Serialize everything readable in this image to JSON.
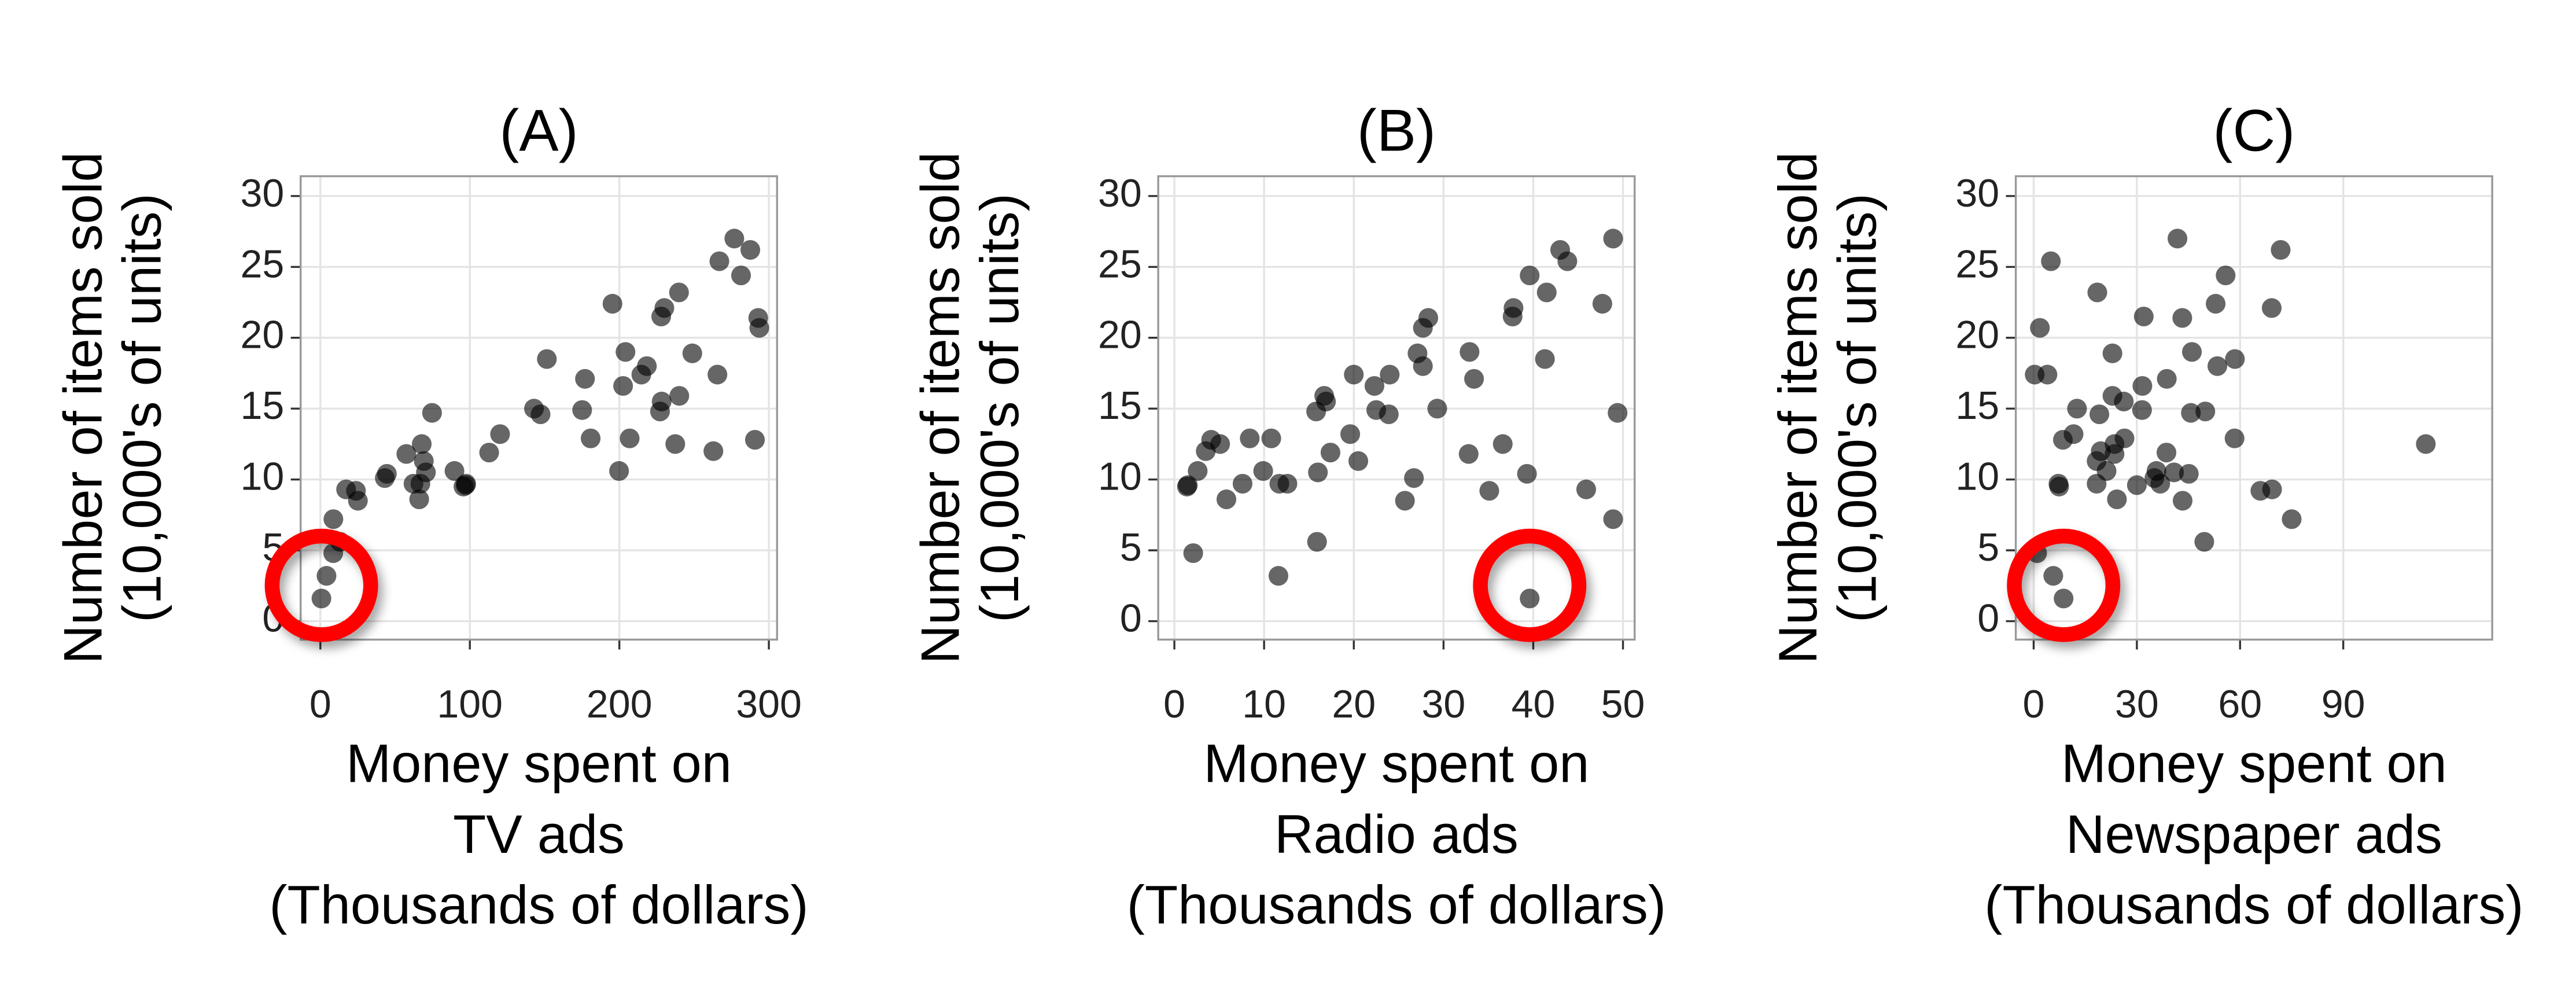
{
  "chart_data": [
    {
      "type": "scatter",
      "title": "(A)",
      "y_label": [
        "Number of items sold",
        "(10,000's of units)"
      ],
      "x_label": [
        "Money spent on",
        "TV ads",
        "(Thousands of dollars)"
      ],
      "x": [
        0.7,
        230.1,
        44.5,
        17.2,
        151.5,
        180.8,
        8.7,
        57.5,
        120.2,
        8.6,
        199.8,
        66.1,
        214.7,
        23.8,
        97.5,
        204.1,
        195.4,
        67.8,
        281.4,
        69.2,
        147.3,
        218.4,
        237.4,
        13.2,
        228.3,
        62.3,
        262.9,
        142.9,
        240.1,
        248.8,
        70.6,
        292.9,
        112.9,
        97.2,
        265.6,
        95.7,
        290.7,
        266.9,
        74.7,
        43.1,
        228,
        202.5,
        177,
        293.6,
        206.9,
        25.1,
        175.1,
        89.7,
        239.9,
        227.2,
        66.9,
        4.1,
        276.9,
        287.6
      ],
      "values": [
        1.6,
        22.1,
        10.4,
        9.3,
        18.5,
        12.9,
        7.2,
        11.8,
        13.2,
        4.8,
        10.6,
        8.6,
        17.4,
        9.2,
        9.7,
        19,
        22.4,
        12.5,
        24.4,
        11.3,
        14.6,
        18,
        12.5,
        5.6,
        15.5,
        9.7,
        12,
        15,
        15.9,
        18.9,
        10.5,
        21.4,
        11.9,
        9.6,
        17.4,
        9.5,
        12.8,
        25.4,
        14.7,
        10.1,
        21.5,
        16.6,
        17.1,
        20.7,
        12.9,
        8.5,
        14.9,
        10.6,
        23.2,
        14.8,
        9.7,
        3.2,
        27,
        26.2
      ],
      "color": "#000000",
      "xlim": [
        -13.2,
        305.5
      ],
      "xticks": [
        0,
        100,
        200,
        300
      ],
      "ylim": [
        -1.3,
        31.4
      ],
      "yticks": [
        0,
        5,
        10,
        15,
        20,
        25,
        30
      ],
      "grid": true,
      "highlight": 0,
      "highlight_color": "#ff0000"
    },
    {
      "type": "scatter",
      "title": "(B)",
      "y_label": [
        "Number of items sold",
        "(10,000's of units)"
      ],
      "x_label": [
        "Money spent on",
        "Radio ads",
        "(Thousands of dollars)"
      ],
      "x": [
        39.6,
        37.8,
        39.3,
        45.9,
        41.3,
        10.8,
        48.9,
        32.8,
        19.6,
        2.1,
        2.6,
        5.8,
        24,
        35.1,
        7.6,
        32.9,
        47.7,
        36.6,
        39.6,
        20.5,
        23.9,
        27.7,
        5.1,
        15.9,
        16.9,
        12.6,
        3.5,
        29.3,
        16.7,
        27.1,
        16,
        28.3,
        17.4,
        1.5,
        20,
        1.4,
        4.1,
        43.8,
        49.4,
        26.7,
        37.7,
        22.3,
        33.4,
        27.7,
        8.4,
        25.7,
        22.5,
        9.9,
        41.5,
        15.8,
        11.7,
        11.6,
        48.9,
        43
      ],
      "values": [
        1.6,
        22.1,
        10.4,
        9.3,
        18.5,
        12.9,
        7.2,
        11.8,
        13.2,
        4.8,
        10.6,
        8.6,
        17.4,
        9.2,
        9.7,
        19,
        22.4,
        12.5,
        24.4,
        11.3,
        14.6,
        18,
        12.5,
        5.6,
        15.5,
        9.7,
        12,
        15,
        15.9,
        18.9,
        10.5,
        21.4,
        11.9,
        9.6,
        17.4,
        9.5,
        12.8,
        25.4,
        14.7,
        10.1,
        21.5,
        16.6,
        17.1,
        20.7,
        12.9,
        8.5,
        14.9,
        10.6,
        23.2,
        14.8,
        9.7,
        3.2,
        27,
        26.2
      ],
      "color": "#000000",
      "xlim": [
        -1.8,
        51.3
      ],
      "xticks": [
        0,
        10,
        20,
        30,
        40,
        50
      ],
      "ylim": [
        -1.3,
        31.4
      ],
      "yticks": [
        0,
        5,
        10,
        15,
        20,
        25,
        30
      ],
      "grid": true,
      "highlight": 0,
      "highlight_color": "#ff0000"
    },
    {
      "type": "scatter",
      "title": "(C)",
      "y_label": [
        "Number of items sold",
        "(10,000's of units)"
      ],
      "x_label": [
        "Money spent on",
        "Newspaper ads",
        "(Thousands of dollars)"
      ],
      "x": [
        8.7,
        69.2,
        45.1,
        69.3,
        58.5,
        58.4,
        75,
        23.5,
        11.6,
        1,
        21.2,
        24.2,
        4,
        65.9,
        7.2,
        46,
        52.9,
        114,
        55.8,
        18.3,
        19.1,
        53.4,
        23.5,
        49.6,
        26.2,
        18.3,
        19.5,
        12.6,
        22.9,
        22.9,
        40.8,
        43.2,
        38.6,
        30,
        0.3,
        7.4,
        8.5,
        5,
        45.7,
        35.1,
        32,
        31.6,
        38.7,
        1.8,
        26.4,
        43.3,
        31.5,
        35.7,
        18.5,
        49.9,
        36.8,
        5.7,
        41.8,
        71.8
      ],
      "values": [
        1.6,
        22.1,
        10.4,
        9.3,
        18.5,
        12.9,
        7.2,
        11.8,
        13.2,
        4.8,
        10.6,
        8.6,
        17.4,
        9.2,
        9.7,
        19,
        22.4,
        12.5,
        24.4,
        11.3,
        14.6,
        18,
        12.5,
        5.6,
        15.5,
        9.7,
        12,
        15,
        15.9,
        18.9,
        10.5,
        21.4,
        11.9,
        9.6,
        17.4,
        9.5,
        12.8,
        25.4,
        14.7,
        10.1,
        21.5,
        16.6,
        17.1,
        20.7,
        12.9,
        8.5,
        14.9,
        10.6,
        23.2,
        14.8,
        9.7,
        3.2,
        27,
        26.2
      ],
      "color": "#000000",
      "xlim": [
        -5.2,
        133.3
      ],
      "xticks": [
        0,
        30,
        60,
        90
      ],
      "ylim": [
        -1.3,
        31.4
      ],
      "yticks": [
        0,
        5,
        10,
        15,
        20,
        25,
        30
      ],
      "grid": true,
      "highlight": 0,
      "highlight_color": "#ff0000"
    }
  ]
}
